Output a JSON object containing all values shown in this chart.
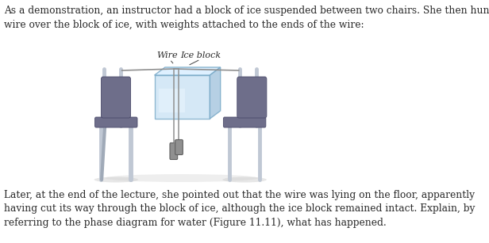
{
  "top_text": "As a demonstration, an instructor had a block of ice suspended between two chairs. She then hung a\nwire over the block of ice, with weights attached to the ends of the wire:",
  "bottom_text": "Later, at the end of the lecture, she pointed out that the wire was lying on the floor, apparently\nhaving cut its way through the block of ice, although the ice block remained intact. Explain, by\nreferring to the phase diagram for water (Figure 11.11), what has happened.",
  "label_wire": "Wire",
  "label_ice": "Ice block",
  "bg_color": "#ffffff",
  "text_color": "#2a2a2a",
  "font_size": 8.8,
  "label_font_size": 8.0,
  "chair_seat_color": "#6e6e8a",
  "chair_back_color": "#6e6e8a",
  "chair_leg_color": "#c0c8d4",
  "chair_leg_shadow": "#a0aab8",
  "ice_front_color": "#cce4f5",
  "ice_top_color": "#daeeff",
  "ice_right_color": "#aac8e0",
  "ice_highlight": "#eaf6ff",
  "ice_edge_color": "#7aaac8",
  "wire_color": "#909090",
  "weight_color": "#909090",
  "weight_edge": "#606060",
  "shadow_color": "#d0d0d0",
  "label_line_color": "#555555"
}
